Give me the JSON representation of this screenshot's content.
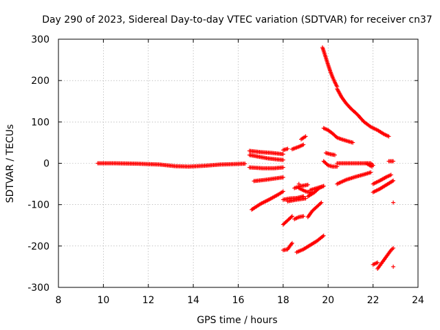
{
  "chart_data": {
    "type": "scatter",
    "title": "Day 290 of 2023, Sidereal Day-to-day VTEC variation (SDTVAR) for receiver cn37",
    "xlabel": "GPS time / hours",
    "ylabel": "SDTVAR / TECUs",
    "xlim": [
      8,
      24
    ],
    "ylim": [
      -300,
      300
    ],
    "xticks": [
      "8",
      "10",
      "12",
      "14",
      "16",
      "18",
      "20",
      "22",
      "24"
    ],
    "yticks": [
      "300",
      "200",
      "100",
      "0",
      "-100",
      "-200",
      "-300"
    ],
    "grid": true,
    "marker": "plus",
    "color": "#ff0000",
    "series": [
      {
        "name": "s1",
        "points": [
          [
            9.75,
            0
          ],
          [
            10.5,
            0
          ],
          [
            11.5,
            -1
          ],
          [
            12.5,
            -3
          ],
          [
            13.2,
            -7
          ],
          [
            13.8,
            -8
          ],
          [
            14.5,
            -6
          ],
          [
            15.2,
            -3
          ],
          [
            15.8,
            -2
          ],
          [
            16.3,
            -1
          ]
        ]
      },
      {
        "name": "s2",
        "points": [
          [
            16.5,
            30
          ],
          [
            17.0,
            27
          ],
          [
            17.5,
            25
          ],
          [
            18.0,
            22
          ]
        ]
      },
      {
        "name": "s3",
        "points": [
          [
            16.5,
            20
          ],
          [
            16.9,
            16
          ],
          [
            17.3,
            12
          ],
          [
            17.8,
            9
          ],
          [
            18.0,
            8
          ]
        ]
      },
      {
        "name": "s4",
        "points": [
          [
            16.5,
            -10
          ],
          [
            17.1,
            -12
          ],
          [
            17.6,
            -12
          ],
          [
            18.0,
            -10
          ]
        ]
      },
      {
        "name": "s5",
        "points": [
          [
            16.7,
            -43
          ],
          [
            17.2,
            -40
          ],
          [
            17.6,
            -37
          ],
          [
            18.0,
            -34
          ]
        ]
      },
      {
        "name": "s6",
        "points": [
          [
            16.6,
            -112
          ],
          [
            17.0,
            -98
          ],
          [
            17.4,
            -87
          ],
          [
            17.8,
            -75
          ],
          [
            18.0,
            -68
          ]
        ]
      },
      {
        "name": "s7",
        "points": [
          [
            18.0,
            32
          ],
          [
            18.2,
            35
          ]
        ]
      },
      {
        "name": "s8",
        "points": [
          [
            18.4,
            34
          ],
          [
            18.7,
            40
          ],
          [
            18.9,
            45
          ]
        ]
      },
      {
        "name": "s9",
        "points": [
          [
            18.8,
            58
          ],
          [
            19.0,
            65
          ]
        ]
      },
      {
        "name": "s10",
        "points": [
          [
            18.0,
            -148
          ],
          [
            18.2,
            -138
          ],
          [
            18.4,
            -128
          ]
        ]
      },
      {
        "name": "s11",
        "points": [
          [
            18.5,
            -135
          ],
          [
            18.7,
            -130
          ],
          [
            18.9,
            -128
          ]
        ]
      },
      {
        "name": "s12",
        "points": [
          [
            18.0,
            -88
          ],
          [
            18.3,
            -85
          ],
          [
            18.6,
            -84
          ],
          [
            18.9,
            -80
          ]
        ]
      },
      {
        "name": "s13",
        "points": [
          [
            18.2,
            -92
          ],
          [
            18.6,
            -88
          ],
          [
            19.0,
            -85
          ]
        ]
      },
      {
        "name": "s14",
        "points": [
          [
            18.5,
            -60
          ],
          [
            18.8,
            -55
          ],
          [
            19.1,
            -52
          ]
        ]
      },
      {
        "name": "s15",
        "points": [
          [
            18.7,
            -60
          ],
          [
            19.0,
            -68
          ],
          [
            19.3,
            -72
          ]
        ]
      },
      {
        "name": "s16",
        "points": [
          [
            19.1,
            -80
          ],
          [
            19.4,
            -70
          ],
          [
            19.6,
            -60
          ],
          [
            19.8,
            -55
          ]
        ]
      },
      {
        "name": "s17",
        "points": [
          [
            19.1,
            -130
          ],
          [
            19.3,
            -115
          ],
          [
            19.5,
            -105
          ],
          [
            19.7,
            -95
          ]
        ]
      },
      {
        "name": "s18",
        "points": [
          [
            19.2,
            -65
          ],
          [
            19.5,
            -60
          ],
          [
            19.8,
            -55
          ]
        ]
      },
      {
        "name": "s19",
        "points": [
          [
            18.0,
            -210
          ],
          [
            18.2,
            -208
          ],
          [
            18.3,
            -200
          ],
          [
            18.4,
            -193
          ]
        ]
      },
      {
        "name": "s20",
        "points": [
          [
            18.6,
            -215
          ],
          [
            18.9,
            -208
          ],
          [
            19.2,
            -198
          ],
          [
            19.5,
            -188
          ],
          [
            19.8,
            -175
          ]
        ]
      },
      {
        "name": "s21",
        "points": [
          [
            18.7,
            -50
          ]
        ]
      },
      {
        "name": "s22",
        "points": [
          [
            19.75,
            280
          ],
          [
            19.8,
            272
          ],
          [
            19.9,
            255
          ],
          [
            20.0,
            238
          ],
          [
            20.1,
            222
          ],
          [
            20.2,
            208
          ],
          [
            20.3,
            196
          ],
          [
            20.4,
            185
          ]
        ]
      },
      {
        "name": "s23",
        "points": [
          [
            20.4,
            180
          ],
          [
            20.6,
            160
          ],
          [
            20.8,
            145
          ],
          [
            21.0,
            133
          ],
          [
            21.3,
            118
          ],
          [
            21.6,
            100
          ],
          [
            21.9,
            88
          ],
          [
            22.2,
            80
          ],
          [
            22.5,
            70
          ],
          [
            22.7,
            65
          ]
        ]
      },
      {
        "name": "s24",
        "points": [
          [
            19.8,
            85
          ],
          [
            20.0,
            80
          ],
          [
            20.2,
            72
          ],
          [
            20.4,
            62
          ],
          [
            20.6,
            58
          ],
          [
            20.9,
            53
          ],
          [
            21.1,
            50
          ]
        ]
      },
      {
        "name": "s25",
        "points": [
          [
            19.9,
            25
          ],
          [
            20.1,
            22
          ],
          [
            20.3,
            20
          ]
        ]
      },
      {
        "name": "s26",
        "points": [
          [
            19.8,
            5
          ],
          [
            20.0,
            -5
          ],
          [
            20.2,
            -8
          ],
          [
            20.4,
            -8
          ]
        ]
      },
      {
        "name": "s27",
        "points": [
          [
            20.4,
            0
          ],
          [
            20.8,
            0
          ],
          [
            21.2,
            0
          ],
          [
            21.6,
            0
          ],
          [
            21.9,
            0
          ],
          [
            22.0,
            -5
          ]
        ]
      },
      {
        "name": "s28",
        "points": [
          [
            20.4,
            -50
          ],
          [
            20.8,
            -40
          ],
          [
            21.2,
            -33
          ],
          [
            21.6,
            -27
          ],
          [
            21.9,
            -22
          ]
        ]
      },
      {
        "name": "s29",
        "points": [
          [
            21.7,
            0
          ],
          [
            21.85,
            -5
          ],
          [
            21.95,
            -8
          ]
        ]
      },
      {
        "name": "s30",
        "points": [
          [
            22.0,
            -50
          ],
          [
            22.3,
            -42
          ],
          [
            22.6,
            -33
          ],
          [
            22.8,
            -28
          ]
        ]
      },
      {
        "name": "s31",
        "points": [
          [
            22.0,
            -70
          ],
          [
            22.3,
            -62
          ],
          [
            22.6,
            -52
          ],
          [
            22.9,
            -42
          ]
        ]
      },
      {
        "name": "s32",
        "points": [
          [
            22.0,
            -245
          ],
          [
            22.2,
            -240
          ]
        ]
      },
      {
        "name": "s33",
        "points": [
          [
            22.2,
            -255
          ],
          [
            22.4,
            -240
          ],
          [
            22.6,
            -225
          ],
          [
            22.8,
            -210
          ],
          [
            22.9,
            -205
          ]
        ]
      },
      {
        "name": "s34",
        "points": [
          [
            22.7,
            5
          ],
          [
            22.9,
            5
          ]
        ]
      },
      {
        "name": "s35",
        "points": [
          [
            22.9,
            -95
          ]
        ]
      },
      {
        "name": "s36",
        "points": [
          [
            22.9,
            -250
          ]
        ]
      }
    ]
  }
}
